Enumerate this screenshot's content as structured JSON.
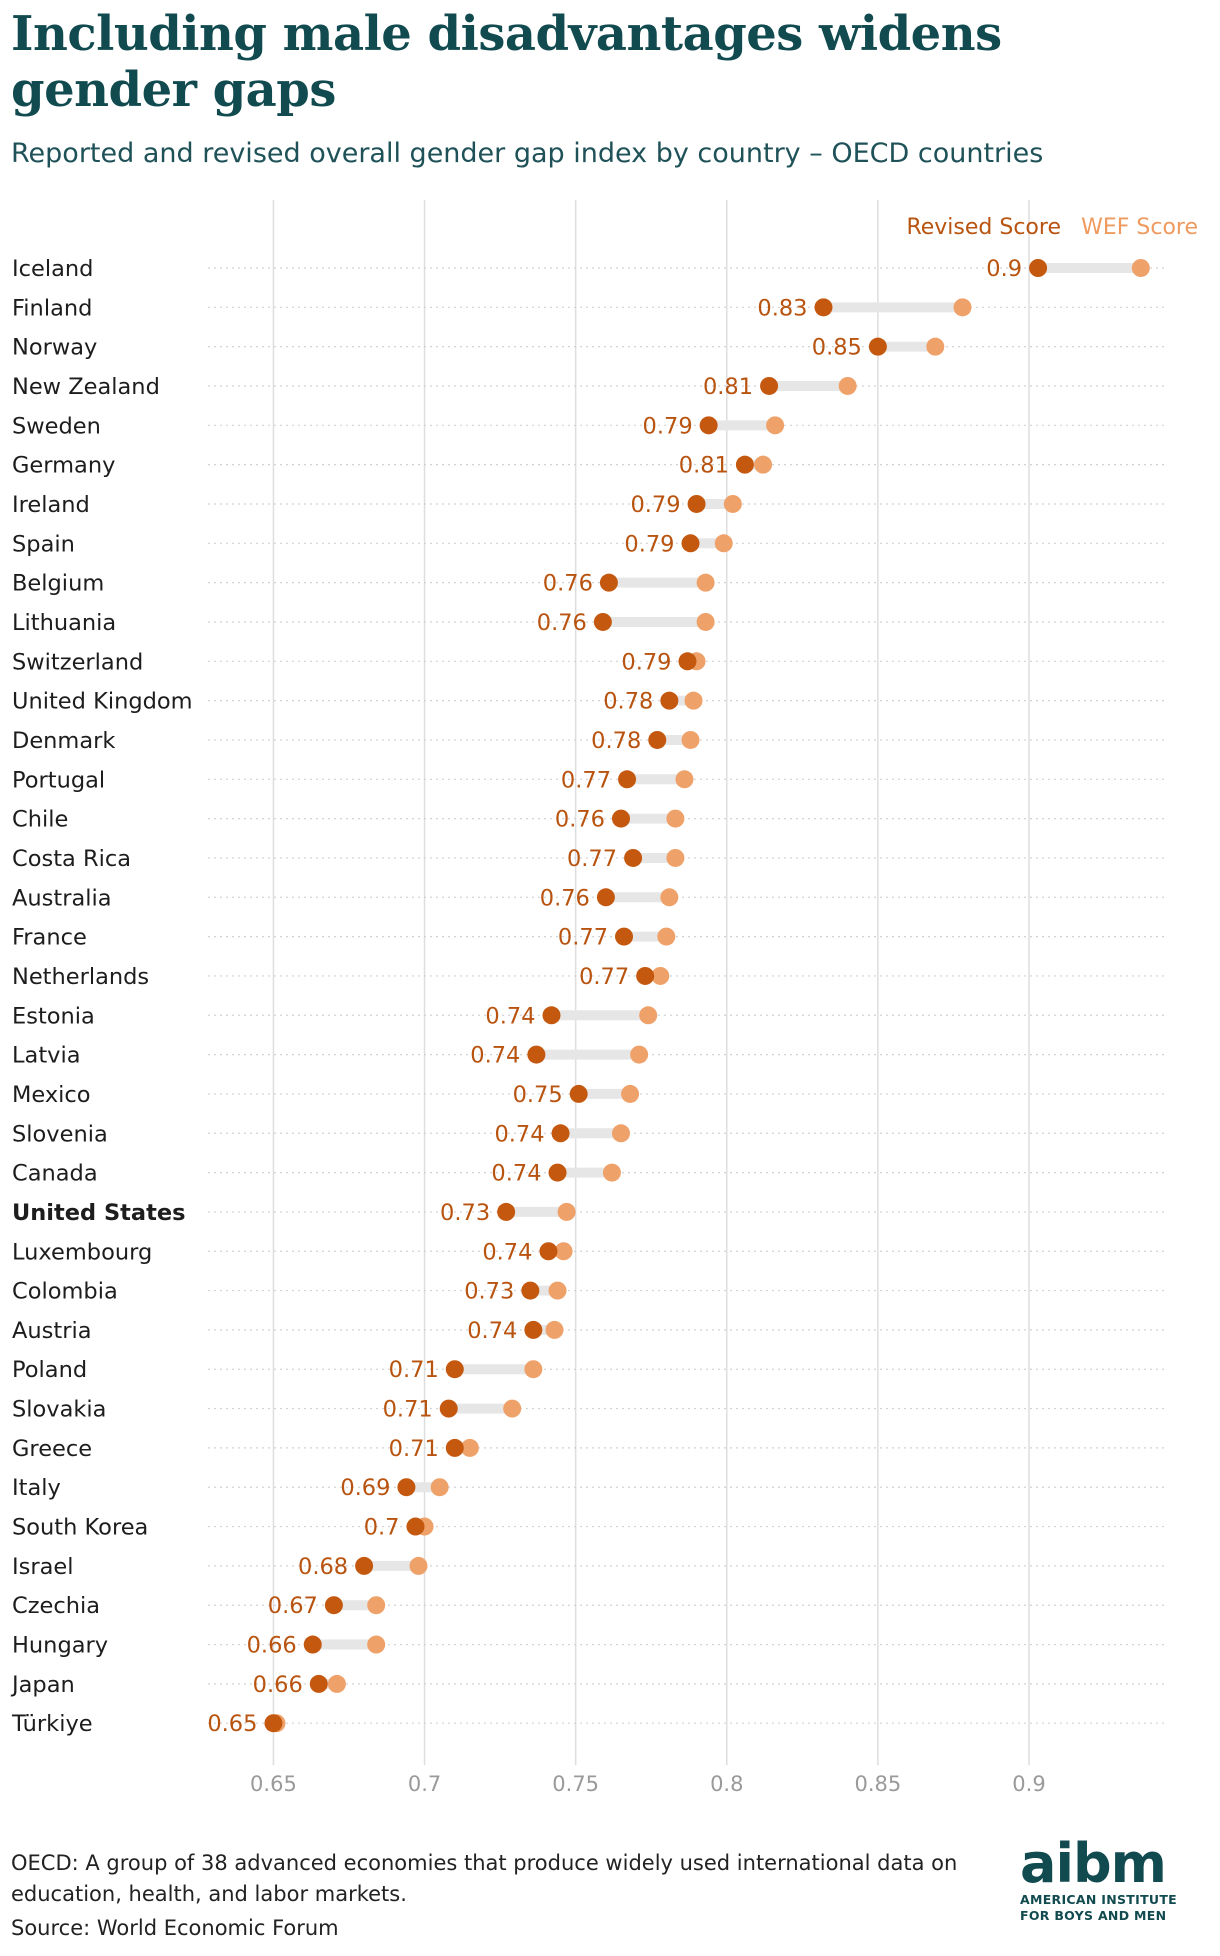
{
  "title": "Including male disadvantages widens gender gaps",
  "subtitle": "Reported and revised overall gender gap index by country – OECD countries",
  "footnote": "OECD: A group of 38 advanced economies that produce widely used international data on education, health, and labor markets.",
  "source": "Source: World Economic Forum",
  "logo": {
    "word": "aibm",
    "line1": "AMERICAN INSTITUTE",
    "line2": "FOR BOYS AND MEN"
  },
  "colors": {
    "revised": "#c4580f",
    "wef": "#efa16a",
    "revised_label": "#b85410",
    "wef_label": "#ef9a5e",
    "connector": "#e6e6e6",
    "title": "#114a4f"
  },
  "chart_data": {
    "type": "dumbbell",
    "xlim": [
      0.63,
      0.945
    ],
    "x_ticks": [
      0.65,
      0.7,
      0.75,
      0.8,
      0.85,
      0.9
    ],
    "x_tick_labels": [
      "0.65",
      "0.7",
      "0.75",
      "0.8",
      "0.85",
      "0.9"
    ],
    "grid": true,
    "legend_placement": "top-right",
    "highlight": "United States",
    "series": [
      {
        "name": "Revised Score",
        "key": "revised"
      },
      {
        "name": "WEF Score",
        "key": "wef"
      }
    ],
    "rows": [
      {
        "country": "Iceland",
        "revised": 0.903,
        "wef": 0.937,
        "label": "0.9"
      },
      {
        "country": "Finland",
        "revised": 0.832,
        "wef": 0.878,
        "label": "0.83"
      },
      {
        "country": "Norway",
        "revised": 0.85,
        "wef": 0.869,
        "label": "0.85"
      },
      {
        "country": "New Zealand",
        "revised": 0.814,
        "wef": 0.84,
        "label": "0.81"
      },
      {
        "country": "Sweden",
        "revised": 0.794,
        "wef": 0.816,
        "label": "0.79"
      },
      {
        "country": "Germany",
        "revised": 0.806,
        "wef": 0.812,
        "label": "0.81"
      },
      {
        "country": "Ireland",
        "revised": 0.79,
        "wef": 0.802,
        "label": "0.79"
      },
      {
        "country": "Spain",
        "revised": 0.788,
        "wef": 0.799,
        "label": "0.79"
      },
      {
        "country": "Belgium",
        "revised": 0.761,
        "wef": 0.793,
        "label": "0.76"
      },
      {
        "country": "Lithuania",
        "revised": 0.759,
        "wef": 0.793,
        "label": "0.76"
      },
      {
        "country": "Switzerland",
        "revised": 0.787,
        "wef": 0.79,
        "label": "0.79"
      },
      {
        "country": "United Kingdom",
        "revised": 0.781,
        "wef": 0.789,
        "label": "0.78"
      },
      {
        "country": "Denmark",
        "revised": 0.777,
        "wef": 0.788,
        "label": "0.78"
      },
      {
        "country": "Portugal",
        "revised": 0.767,
        "wef": 0.786,
        "label": "0.77"
      },
      {
        "country": "Chile",
        "revised": 0.765,
        "wef": 0.783,
        "label": "0.76"
      },
      {
        "country": "Costa Rica",
        "revised": 0.769,
        "wef": 0.783,
        "label": "0.77"
      },
      {
        "country": "Australia",
        "revised": 0.76,
        "wef": 0.781,
        "label": "0.76"
      },
      {
        "country": "France",
        "revised": 0.766,
        "wef": 0.78,
        "label": "0.77"
      },
      {
        "country": "Netherlands",
        "revised": 0.773,
        "wef": 0.778,
        "label": "0.77"
      },
      {
        "country": "Estonia",
        "revised": 0.742,
        "wef": 0.774,
        "label": "0.74"
      },
      {
        "country": "Latvia",
        "revised": 0.737,
        "wef": 0.771,
        "label": "0.74"
      },
      {
        "country": "Mexico",
        "revised": 0.751,
        "wef": 0.768,
        "label": "0.75"
      },
      {
        "country": "Slovenia",
        "revised": 0.745,
        "wef": 0.765,
        "label": "0.74"
      },
      {
        "country": "Canada",
        "revised": 0.744,
        "wef": 0.762,
        "label": "0.74"
      },
      {
        "country": "United States",
        "revised": 0.727,
        "wef": 0.747,
        "label": "0.73"
      },
      {
        "country": "Luxembourg",
        "revised": 0.741,
        "wef": 0.746,
        "label": "0.74"
      },
      {
        "country": "Colombia",
        "revised": 0.735,
        "wef": 0.744,
        "label": "0.73"
      },
      {
        "country": "Austria",
        "revised": 0.736,
        "wef": 0.743,
        "label": "0.74"
      },
      {
        "country": "Poland",
        "revised": 0.71,
        "wef": 0.736,
        "label": "0.71"
      },
      {
        "country": "Slovakia",
        "revised": 0.708,
        "wef": 0.729,
        "label": "0.71"
      },
      {
        "country": "Greece",
        "revised": 0.71,
        "wef": 0.715,
        "label": "0.71"
      },
      {
        "country": "Italy",
        "revised": 0.694,
        "wef": 0.705,
        "label": "0.69"
      },
      {
        "country": "South Korea",
        "revised": 0.697,
        "wef": 0.7,
        "label": "0.7"
      },
      {
        "country": "Israel",
        "revised": 0.68,
        "wef": 0.698,
        "label": "0.68"
      },
      {
        "country": "Czechia",
        "revised": 0.67,
        "wef": 0.684,
        "label": "0.67"
      },
      {
        "country": "Hungary",
        "revised": 0.663,
        "wef": 0.684,
        "label": "0.66"
      },
      {
        "country": "Japan",
        "revised": 0.665,
        "wef": 0.671,
        "label": "0.66"
      },
      {
        "country": "Türkiye",
        "revised": 0.65,
        "wef": 0.651,
        "label": "0.65"
      }
    ]
  }
}
